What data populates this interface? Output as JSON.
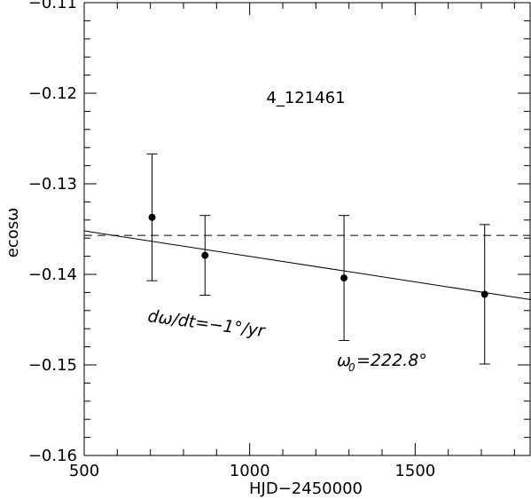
{
  "chart_data": {
    "type": "scatter",
    "title": "4_121461",
    "xlabel": "HJD−2450000",
    "ylabel": "ecosω",
    "xlim": [
      500,
      1850
    ],
    "ylim": [
      -0.16,
      -0.11
    ],
    "xticks": [
      500,
      1000,
      1500
    ],
    "xtick_labels": [
      "500",
      "1000",
      "1500"
    ],
    "yticks": [
      -0.16,
      -0.15,
      -0.14,
      -0.13,
      -0.12,
      -0.11
    ],
    "ytick_labels": [
      "−0.16",
      "−0.15",
      "−0.14",
      "−0.13",
      "−0.12",
      "−0.11"
    ],
    "points": [
      {
        "x": 705,
        "y": -0.1337,
        "err": 0.007
      },
      {
        "x": 865,
        "y": -0.1379,
        "err": 0.0044
      },
      {
        "x": 1285,
        "y": -0.1404,
        "err": 0.0069
      },
      {
        "x": 1710,
        "y": -0.1422,
        "err": 0.0077
      }
    ],
    "fit_line": {
      "x": [
        500,
        1850
      ],
      "y": [
        -0.1352,
        -0.1428
      ]
    },
    "reference_line": {
      "y": -0.1357,
      "style": "dashed"
    },
    "annotations": {
      "rate": "dω/dt=−1°/yr",
      "omega0": "ω",
      "omega0_sub": "0",
      "omega0_value": "=222.8°"
    },
    "grid": false,
    "legend": "none"
  }
}
